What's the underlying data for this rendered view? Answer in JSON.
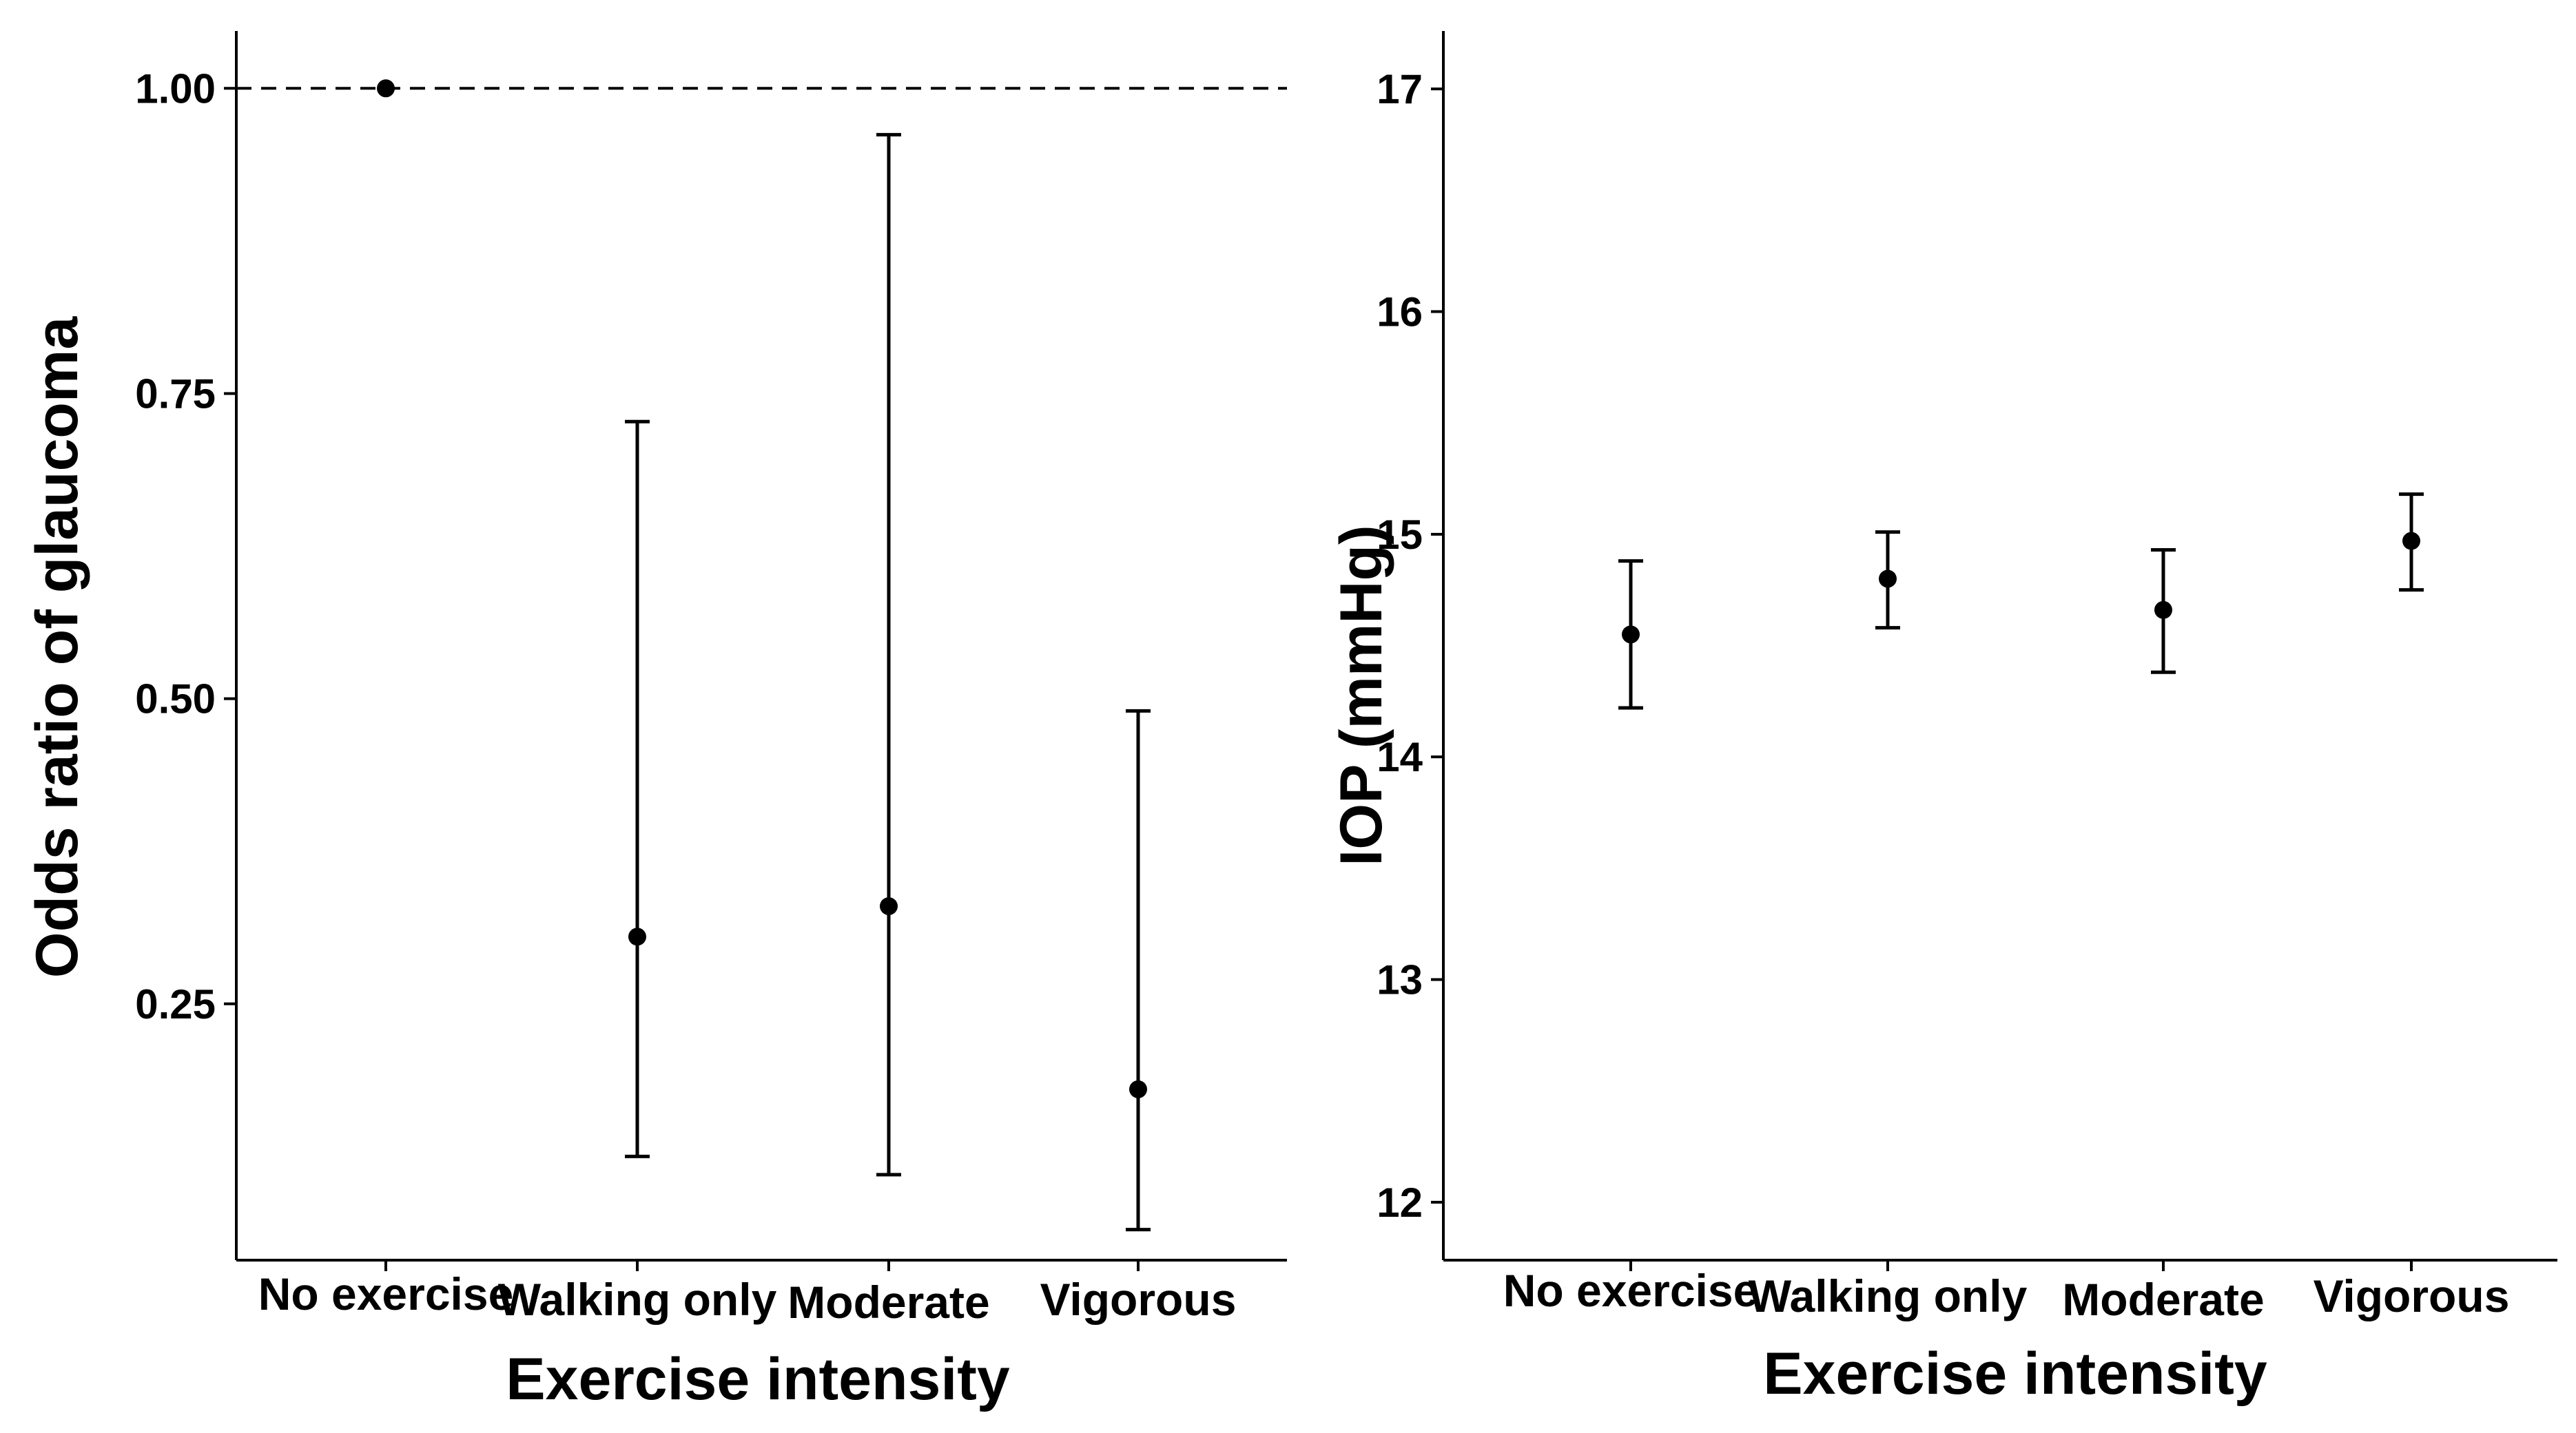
{
  "chart_data": [
    {
      "type": "scatter",
      "subtype": "point-range",
      "title": "",
      "xlabel": "Exercise intensity",
      "ylabel": "Odds ratio of glaucoma",
      "categories": [
        "No exercise",
        "Walking only",
        "Moderate",
        "Vigorous"
      ],
      "estimates": [
        1.0,
        0.305,
        0.33,
        0.18
      ],
      "lower": [
        null,
        0.125,
        0.11,
        0.065
      ],
      "upper": [
        null,
        0.727,
        0.962,
        0.49
      ],
      "ylim": [
        0.04,
        1.047
      ],
      "yticks": [
        0.25,
        0.5,
        0.75,
        1.0
      ],
      "ytick_labels": [
        "0.25",
        "0.50",
        "0.75",
        "1.00"
      ],
      "reference_line": 1.0,
      "grid": false
    },
    {
      "type": "scatter",
      "subtype": "point-range",
      "title": "",
      "xlabel": "Exercise intensity",
      "ylabel": "IOP (mmHg)",
      "categories": [
        "No exercise",
        "Walking only",
        "Moderate",
        "Vigorous"
      ],
      "estimates": [
        14.55,
        14.8,
        14.66,
        14.97
      ],
      "lower": [
        14.22,
        14.58,
        14.38,
        14.75
      ],
      "upper": [
        14.88,
        15.01,
        14.93,
        15.18
      ],
      "ylim": [
        11.74,
        17.26
      ],
      "yticks": [
        12,
        13,
        14,
        15,
        16,
        17
      ],
      "ytick_labels": [
        "12",
        "13",
        "14",
        "15",
        "16",
        "17"
      ],
      "grid": false
    }
  ]
}
